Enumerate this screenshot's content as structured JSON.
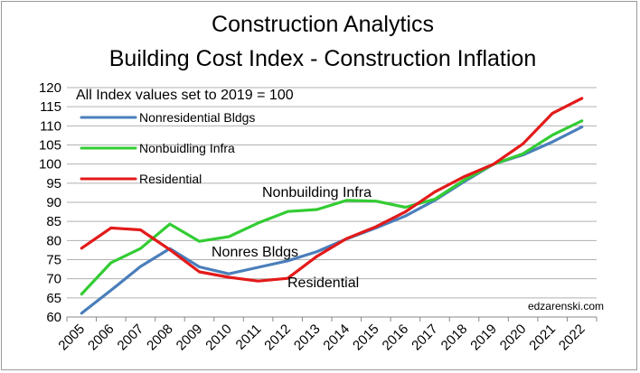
{
  "chart_data": {
    "type": "line",
    "title": "Construction Analytics",
    "subtitle": "Building Cost Index  - Construction Inflation",
    "note": "All Index values set to 2019 = 100",
    "credit": "edzarenski.com",
    "xlabel": "",
    "ylabel": "",
    "ylim": [
      60,
      120
    ],
    "yticks": [
      60,
      65,
      70,
      75,
      80,
      85,
      90,
      95,
      100,
      105,
      110,
      115,
      120
    ],
    "categories": [
      "2005",
      "2006",
      "2007",
      "2008",
      "2009",
      "2010",
      "2011",
      "2012",
      "2013",
      "2014",
      "2015",
      "2016",
      "2017",
      "2018",
      "2019",
      "2020",
      "2021",
      "2022"
    ],
    "grid": true,
    "legend_position": "top-left",
    "series": [
      {
        "name": "Nonresidential Bldgs",
        "color": "#4a7ebb",
        "values": [
          61,
          67,
          73.2,
          77.9,
          73.1,
          71.3,
          73,
          74.7,
          77.1,
          80.4,
          83.3,
          86.4,
          90.5,
          95.4,
          100,
          102.4,
          105.8,
          109.7
        ]
      },
      {
        "name": "Nonbuidling Infra",
        "color": "#33cc33",
        "values": [
          66,
          74.2,
          77.9,
          84.3,
          79.8,
          81,
          84.6,
          87.6,
          88.1,
          90.5,
          90.3,
          88.7,
          90.8,
          95.8,
          100,
          102.7,
          107.6,
          111.3
        ]
      },
      {
        "name": "Residential",
        "color": "#e31a1a",
        "values": [
          78,
          83.3,
          82.8,
          77.6,
          71.8,
          70.4,
          69.4,
          70.1,
          75.9,
          80.5,
          83.6,
          87.5,
          92.7,
          96.7,
          100,
          105.3,
          113.3,
          117.2
        ]
      }
    ],
    "annotations": [
      {
        "text": "Nonbuilding Infra",
        "anchor_series": "Nonbuidling Infra"
      },
      {
        "text": "Nonres Bldgs",
        "anchor_series": "Nonresidential Bldgs"
      },
      {
        "text": "Residential",
        "anchor_series": "Residential"
      }
    ]
  }
}
